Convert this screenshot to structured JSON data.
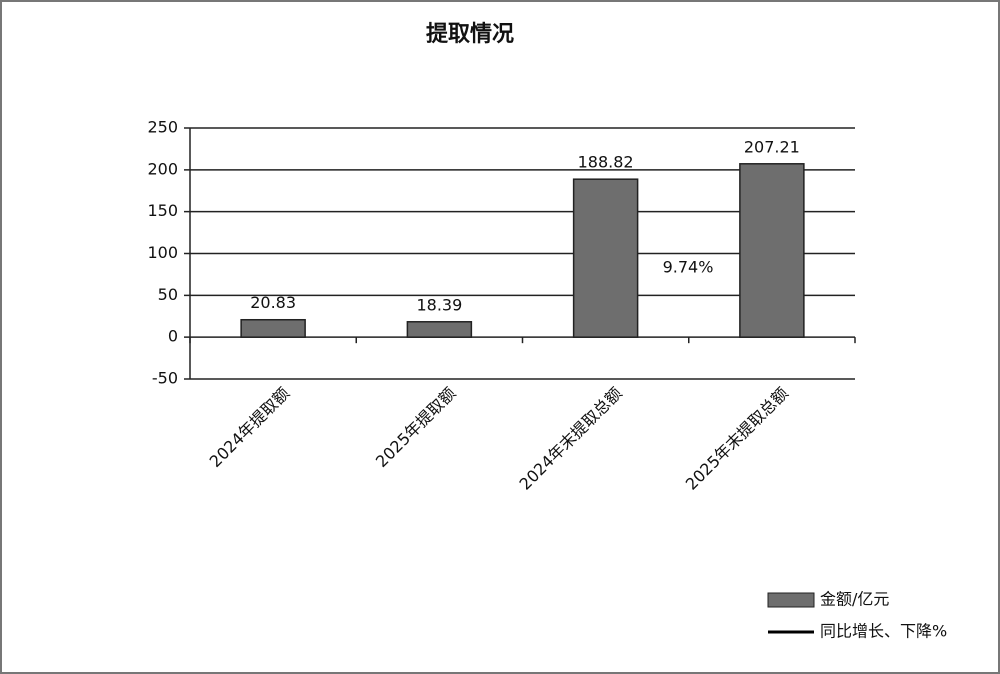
{
  "chart_data": {
    "type": "bar",
    "title": "提取情况",
    "categories": [
      "2024年提取额",
      "2025年提取额",
      "2024年末提取总额",
      "2025年末提取总额"
    ],
    "series": [
      {
        "name": "金额/亿元",
        "color": "#6e6e6e",
        "values": [
          20.83,
          18.39,
          188.82,
          207.21
        ]
      },
      {
        "name": "同比增长、下降%",
        "color": "#000000",
        "type": "line",
        "values": [
          null,
          null,
          null,
          null
        ]
      }
    ],
    "annotations": [
      "9.74%"
    ],
    "ylim": [
      -50,
      250
    ],
    "yticks": [
      -50,
      0,
      50,
      100,
      150,
      200,
      250
    ],
    "grid": true
  }
}
